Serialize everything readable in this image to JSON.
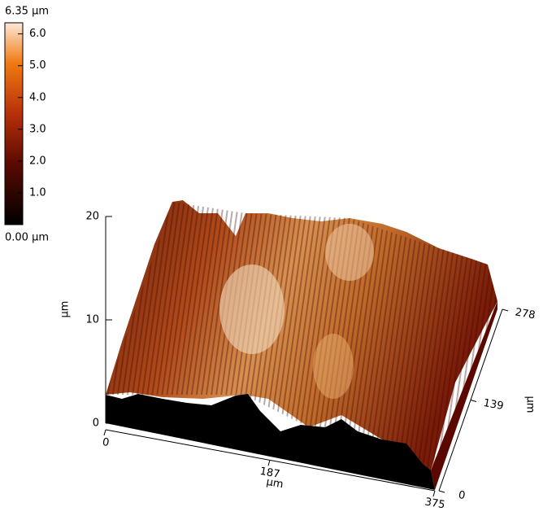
{
  "chart_data": {
    "type": "surface",
    "colorbar": {
      "top_label": "6.35 µm",
      "bottom_label": "0.00 µm",
      "lim": [
        0,
        6.35
      ],
      "ticks": [
        {
          "value": 1,
          "label": "1.0"
        },
        {
          "value": 2,
          "label": "2.0"
        },
        {
          "value": 3,
          "label": "3.0"
        },
        {
          "value": 4,
          "label": "4.0"
        },
        {
          "value": 5,
          "label": "5.0"
        },
        {
          "value": 6,
          "label": "6.0"
        }
      ]
    },
    "xlabel": "µm",
    "xlim": [
      0,
      375
    ],
    "xticks": [
      0,
      187,
      375
    ],
    "ylabel": "µm",
    "ylim": [
      0,
      278
    ],
    "yticks": [
      0,
      139,
      278
    ],
    "zlabel": "µm",
    "zlim": [
      0,
      20
    ],
    "zticks": [
      0,
      10,
      20
    ]
  }
}
